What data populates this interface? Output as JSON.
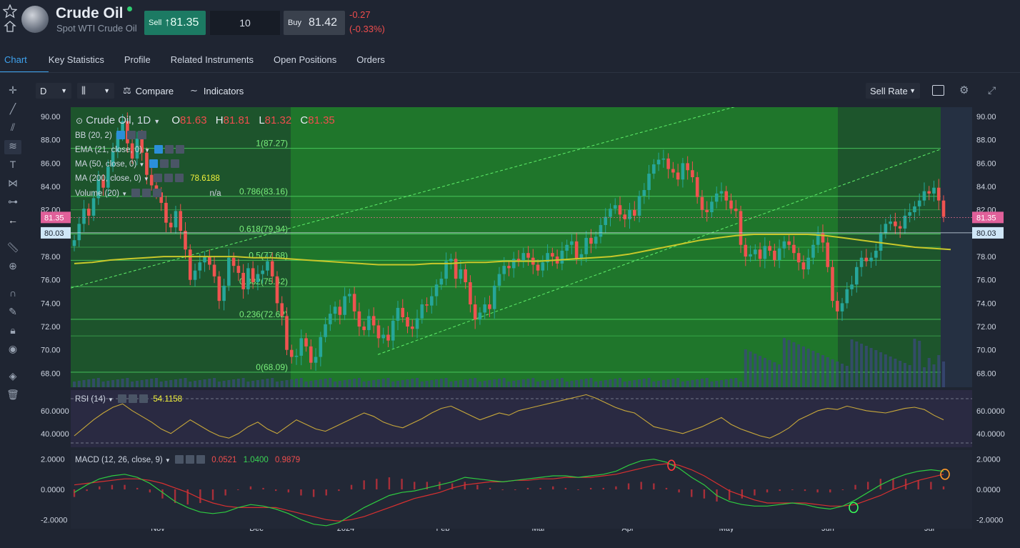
{
  "header": {
    "title": "Crude Oil",
    "subtitle": "Spot WTI Crude Oil",
    "sell_label": "Sell",
    "sell_arrow": "↑",
    "sell_price": "81.35",
    "quantity": "10",
    "buy_label": "Buy",
    "buy_price": "81.42",
    "change_abs": "-0.27",
    "change_pct": "(-0.33%)"
  },
  "tabs": [
    {
      "label": "Chart"
    },
    {
      "label": "Key Statistics"
    },
    {
      "label": "Profile"
    },
    {
      "label": "Related Instruments"
    },
    {
      "label": "Open Positions"
    },
    {
      "label": "Orders"
    }
  ],
  "toolbar": {
    "interval": "D",
    "compare_label": "Compare",
    "indicators_label": "Indicators",
    "rate_label": "Sell Rate"
  },
  "legend": {
    "name": "Crude Oil, 1D",
    "o_label": "O",
    "o_val": "81.63",
    "h_label": "H",
    "h_val": "81.81",
    "l_label": "L",
    "l_val": "81.32",
    "c_label": "C",
    "c_val": "81.35",
    "bb": "BB (20, 2)",
    "ema": "EMA (21, close, 0)",
    "ma50": "MA (50, close, 0)",
    "ma200": "MA (200, close, 0)",
    "ma200_val": "78.6188",
    "volume": "Volume (20)",
    "volume_val": "n/a",
    "rsi": "RSI (14)",
    "rsi_val": "54.1158",
    "macd": "MACD (12, 26, close, 9)",
    "macd_val1": "0.0521",
    "macd_val2": "1.0400",
    "macd_val3": "0.9879"
  },
  "colors": {
    "bull": "#26a69a",
    "bear": "#ef5350",
    "fib_fill": "#1e7a2b",
    "ma200": "#c8c82a",
    "rsi_line": "#c8a83a",
    "macd_line": "#2ecc40",
    "signal_line": "#d93030"
  },
  "chart_data": {
    "type": "line",
    "price_axis_ticks": [
      "90.00",
      "88.00",
      "86.00",
      "84.00",
      "82.00",
      "80.00",
      "78.00",
      "76.00",
      "74.00",
      "72.00",
      "70.00",
      "68.00"
    ],
    "ylim": [
      66.8,
      90.8
    ],
    "x_ticks": [
      "Nov",
      "Dec",
      "2024",
      "Feb",
      "Mar",
      "Apr",
      "May",
      "Jun",
      "Jul"
    ],
    "last_price_label": "81.35",
    "ref_price_label": "80.03",
    "fib_levels": [
      {
        "label": "1(87.27)",
        "value": 87.27
      },
      {
        "label": "0.786(83.16)",
        "value": 83.16
      },
      {
        "label": "0.618(79.94)",
        "value": 79.94
      },
      {
        "label": "0.5(77.68)",
        "value": 77.68
      },
      {
        "label": "0.382(75.42)",
        "value": 75.42
      },
      {
        "label": "0.236(72.62)",
        "value": 72.62
      },
      {
        "label": "0(68.09)",
        "value": 68.09
      }
    ],
    "fib_extra_lines": [
      82.0,
      78.8,
      71.2
    ],
    "close_series": [
      79.4,
      80.8,
      82.1,
      81.5,
      83.0,
      84.6,
      83.9,
      85.7,
      87.0,
      88.6,
      89.6,
      87.7,
      86.4,
      88.1,
      86.9,
      85.0,
      84.1,
      83.5,
      82.6,
      80.9,
      80.5,
      81.9,
      80.2,
      78.6,
      76.0,
      76.8,
      77.5,
      78.0,
      77.3,
      76.3,
      74.2,
      75.5,
      77.9,
      77.2,
      76.6,
      75.2,
      77.0,
      75.8,
      76.5,
      76.8,
      77.6,
      76.3,
      74.0,
      72.9,
      70.0,
      69.4,
      69.5,
      71.0,
      70.3,
      68.9,
      69.4,
      71.1,
      72.2,
      73.1,
      73.7,
      73.0,
      74.6,
      74.8,
      73.3,
      72.0,
      71.7,
      72.9,
      72.1,
      71.0,
      71.3,
      70.8,
      72.5,
      73.6,
      72.8,
      72.0,
      71.8,
      72.7,
      73.9,
      73.8,
      74.6,
      75.6,
      76.1,
      77.6,
      77.8,
      76.1,
      76.9,
      75.8,
      73.9,
      72.6,
      73.2,
      73.9,
      73.5,
      75.5,
      76.5,
      77.2,
      77.0,
      77.8,
      77.6,
      78.3,
      77.9,
      77.3,
      76.8,
      77.5,
      78.3,
      78.0,
      77.4,
      78.5,
      79.0,
      79.3,
      77.8,
      78.2,
      79.6,
      79.1,
      79.7,
      80.7,
      81.4,
      82.1,
      82.4,
      81.6,
      81.2,
      82.0,
      81.5,
      83.2,
      83.7,
      85.1,
      85.9,
      86.3,
      86.4,
      85.5,
      85.2,
      84.6,
      86.0,
      85.4,
      84.8,
      83.1,
      82.0,
      81.8,
      82.7,
      83.4,
      83.6,
      82.8,
      82.1,
      81.9,
      79.0,
      78.0,
      78.2,
      78.6,
      77.8,
      78.9,
      78.5,
      77.7,
      78.7,
      79.3,
      79.0,
      78.3,
      77.5,
      76.9,
      77.9,
      79.0,
      80.0,
      79.2,
      77.1,
      74.2,
      73.3,
      74.0,
      75.2,
      75.6,
      77.1,
      77.9,
      77.6,
      77.9,
      78.5,
      80.0,
      80.8,
      81.0,
      80.6,
      80.4,
      81.5,
      81.8,
      82.3,
      82.8,
      83.6,
      83.4,
      83.9,
      82.8,
      81.4
    ],
    "ma200_series": [
      77.4,
      77.5,
      77.7,
      77.8,
      77.9,
      78.0,
      78.0,
      78.0,
      78.0,
      78.0,
      77.9,
      77.9,
      77.8,
      77.7,
      77.6,
      77.5,
      77.4,
      77.3,
      77.3,
      77.3,
      77.4,
      77.4,
      77.5,
      77.5,
      77.6,
      77.6,
      77.6,
      77.7,
      77.8,
      77.9,
      78.0,
      78.2,
      78.5,
      78.8,
      79.1,
      79.4,
      79.6,
      79.8,
      79.9,
      79.9,
      79.9,
      79.9,
      79.8,
      79.6,
      79.4,
      79.2,
      79.0,
      78.8,
      78.7,
      78.6
    ],
    "rsi_series": [
      38,
      45,
      52,
      58,
      63,
      66,
      60,
      55,
      50,
      44,
      40,
      46,
      52,
      47,
      42,
      38,
      36,
      40,
      46,
      50,
      44,
      40,
      46,
      52,
      48,
      44,
      42,
      46,
      50,
      54,
      58,
      55,
      50,
      47,
      45,
      49,
      53,
      58,
      62,
      64,
      60,
      56,
      52,
      55,
      58,
      56,
      60,
      62,
      64,
      66,
      68,
      70,
      72,
      74,
      71,
      67,
      63,
      60,
      58,
      52,
      46,
      44,
      42,
      40,
      43,
      46,
      50,
      54,
      48,
      44,
      41,
      38,
      36,
      40,
      45,
      52,
      56,
      60,
      62,
      61,
      64,
      62,
      60,
      59,
      58,
      60,
      62,
      63,
      61,
      56,
      52
    ],
    "rsi_ticks": [
      "60.0000",
      "40.0000"
    ],
    "macd_ticks": [
      "2.0000",
      "0.0000",
      "-2.0000"
    ],
    "macd_series": [
      -0.2,
      0.3,
      0.7,
      0.9,
      1.0,
      0.8,
      0.4,
      -0.2,
      -0.8,
      -1.2,
      -1.5,
      -1.6,
      -1.5,
      -1.2,
      -1.0,
      -1.1,
      -1.3,
      -1.6,
      -2.0,
      -2.3,
      -2.4,
      -2.2,
      -1.7,
      -1.2,
      -0.8,
      -0.4,
      -0.2,
      -0.1,
      0.1,
      0.3,
      0.5,
      0.8,
      0.7,
      0.6,
      0.5,
      0.6,
      0.7,
      0.8,
      0.9,
      0.9,
      0.8,
      0.9,
      1.0,
      1.2,
      1.6,
      1.9,
      2.0,
      1.8,
      1.4,
      0.8,
      0.3,
      -0.4,
      -0.8,
      -1.0,
      -1.1,
      -1.1,
      -1.0,
      -0.9,
      -1.0,
      -1.2,
      -1.3,
      -1.1,
      -0.7,
      -0.2,
      0.3,
      0.7,
      1.0,
      1.2,
      1.3,
      1.2
    ],
    "signal_series": [
      0.3,
      0.4,
      0.5,
      0.6,
      0.7,
      0.7,
      0.6,
      0.4,
      0.1,
      -0.2,
      -0.6,
      -0.9,
      -1.1,
      -1.2,
      -1.2,
      -1.2,
      -1.2,
      -1.4,
      -1.6,
      -1.8,
      -2.0,
      -2.1,
      -2.0,
      -1.8,
      -1.5,
      -1.2,
      -0.9,
      -0.6,
      -0.4,
      -0.2,
      0.1,
      0.3,
      0.4,
      0.5,
      0.5,
      0.6,
      0.6,
      0.7,
      0.7,
      0.8,
      0.8,
      0.8,
      0.9,
      1.0,
      1.2,
      1.4,
      1.6,
      1.7,
      1.6,
      1.3,
      0.9,
      0.4,
      -0.1,
      -0.4,
      -0.7,
      -0.9,
      -0.9,
      -0.9,
      -0.9,
      -1.0,
      -1.1,
      -1.1,
      -1.0,
      -0.7,
      -0.4,
      0.0,
      0.3,
      0.6,
      0.8,
      1.0
    ]
  }
}
